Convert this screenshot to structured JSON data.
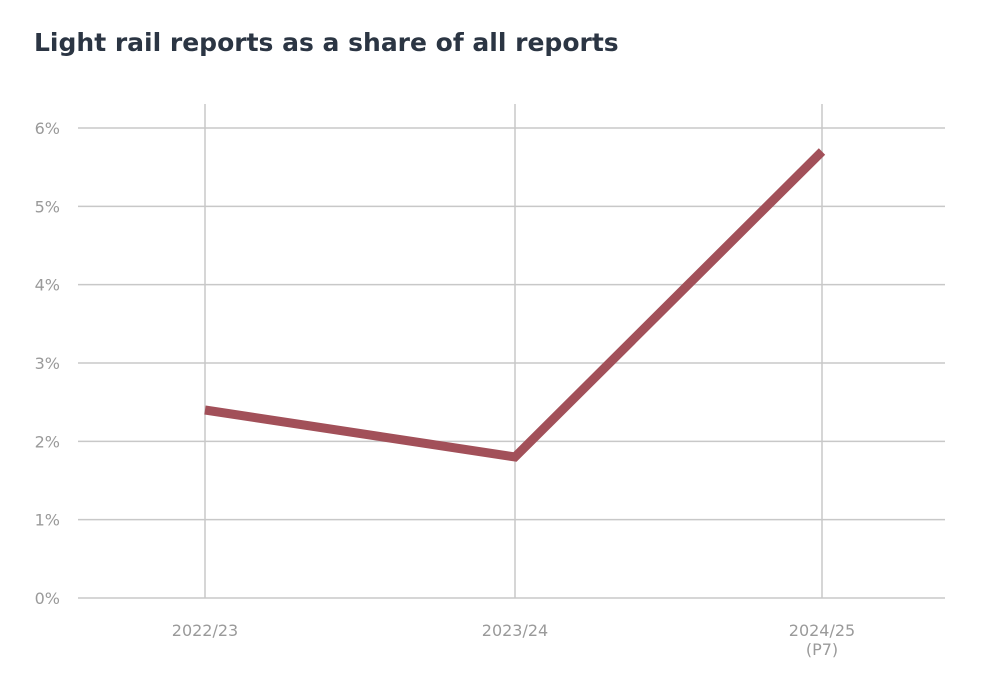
{
  "chart_data": {
    "type": "line",
    "title": "Light rail reports as a share of all reports",
    "xlabel": "",
    "ylabel": "",
    "categories": [
      [
        "2022/23"
      ],
      [
        "2023/24"
      ],
      [
        "2024/25",
        "(P7)"
      ]
    ],
    "series": [
      {
        "values": [
          2.4,
          1.8,
          5.7
        ]
      }
    ],
    "y_ticks": [
      "0%",
      "1%",
      "2%",
      "3%",
      "4%",
      "5%",
      "6%"
    ],
    "ylim": [
      0,
      6
    ],
    "grid": {
      "horizontal": true,
      "vertical": true
    },
    "line_color": "#a25059",
    "grid_color": "#c8c8c8",
    "tick_color": "#9a9a9a",
    "title_color": "#2b3543"
  }
}
